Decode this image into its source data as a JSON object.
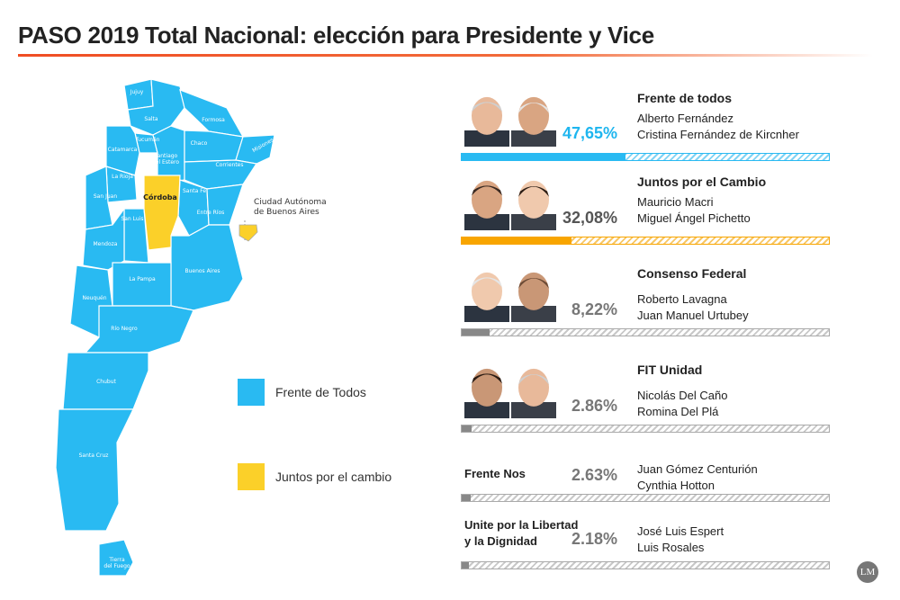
{
  "title": "PASO 2019 Total Nacional: elección para Presidente y Vice",
  "colors": {
    "frente": "#29baf2",
    "juntos": "#fbd029",
    "juntos_bar": "#f8a500",
    "gray_bar": "#888888",
    "pct_blue": "#1fb6ef",
    "pct_gray": "#777777"
  },
  "map": {
    "provinces": [
      "Jujuy",
      "Salta",
      "Formosa",
      "Tucumán",
      "Chaco",
      "Catamarca",
      "Santiago del Estero",
      "Misiones",
      "Corrientes",
      "La Rioja",
      "Córdoba",
      "Santa Fe",
      "San Juan",
      "San Luis",
      "Entre Ríos",
      "Mendoza",
      "Buenos Aires",
      "La Pampa",
      "Neuquén",
      "Río Negro",
      "Chubut",
      "Santa Cruz",
      "Tierra del Fuego"
    ],
    "caba_label": "Ciudad Autónoma de Buenos Aires"
  },
  "legend": [
    {
      "label": "Frente de Todos",
      "color": "#29baf2"
    },
    {
      "label": "Juntos por el cambio",
      "color": "#fbd029"
    }
  ],
  "chart_data": {
    "type": "bar",
    "title": "PASO 2019 Total Nacional: elección para Presidente y Vice",
    "categories": [
      "Frente de todos",
      "Juntos por el Cambio",
      "Consenso Federal",
      "FIT Unidad",
      "Frente Nos",
      "Unite por la Libertad y la Dignidad"
    ],
    "values": [
      47.65,
      32.08,
      8.22,
      2.86,
      2.63,
      2.18
    ],
    "labels": [
      "47,65%",
      "32,08%",
      "8,22%",
      "2.86%",
      "2.63%",
      "2.18%"
    ],
    "candidates": [
      [
        "Alberto Fernández",
        "Cristina Fernández de Kircnher"
      ],
      [
        "Mauricio Macri",
        "Miguel Ángel Pichetto"
      ],
      [
        "Roberto Lavagna",
        "Juan Manuel Urtubey"
      ],
      [
        "Nicolás Del Caño",
        "Romina Del Plá"
      ],
      [
        "Juan Gómez Centurión",
        "Cynthia Hotton"
      ],
      [
        "José Luis Espert",
        "Luis Rosales"
      ]
    ],
    "ylim": [
      0,
      100
    ]
  },
  "logo": "LM"
}
